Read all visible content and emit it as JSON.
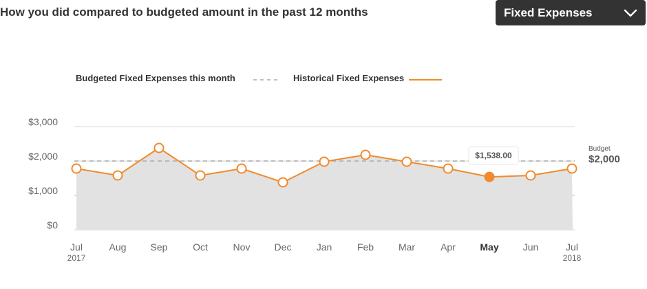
{
  "header": {
    "title": "How you did compared to budgeted amount in the past 12 months"
  },
  "dropdown": {
    "selected": "Fixed Expenses",
    "icon": "chevron-down-icon"
  },
  "colors": {
    "accent": "#f08a2c",
    "area": "#e2e2e2",
    "budget_line": "#aaaaaa",
    "grid": "#dddddd",
    "dark": "#333333"
  },
  "chart_data": {
    "type": "line",
    "title": "",
    "xlabel": "",
    "ylabel": "",
    "categories": [
      "Jul",
      "Aug",
      "Sep",
      "Oct",
      "Nov",
      "Dec",
      "Jan",
      "Feb",
      "Mar",
      "Apr",
      "May",
      "Jun",
      "Jul"
    ],
    "category_years": [
      "2017",
      "",
      "",
      "",
      "",
      "",
      "",
      "",
      "",
      "",
      "",
      "",
      "2018"
    ],
    "highlighted_category_index": 10,
    "y_ticks": [
      "$0",
      "$1,000",
      "$2,000",
      "$3,000"
    ],
    "ylim": [
      0,
      3000
    ],
    "series": [
      {
        "name": "Historical Fixed Expenses",
        "values": [
          1780,
          1580,
          2380,
          1580,
          1780,
          1380,
          1980,
          2180,
          1980,
          1780,
          1538,
          1580,
          1780
        ]
      }
    ],
    "budget": {
      "legend_label": "Budgeted Fixed Expenses this month",
      "value": 2000,
      "caption": "Budget",
      "value_label": "$2,000"
    },
    "tooltip": {
      "index": 10,
      "text": "$1,538.00"
    },
    "legend": {
      "placement": "top",
      "historical_label": "Historical Fixed Expenses"
    },
    "grid": true
  }
}
